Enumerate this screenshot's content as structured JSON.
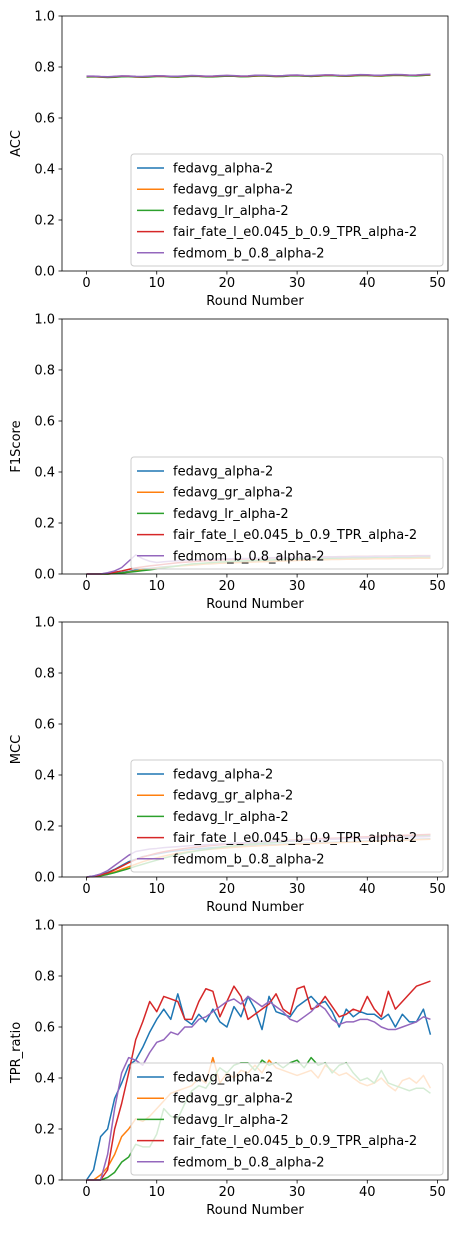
{
  "chart_data": [
    {
      "type": "line",
      "ylabel": "ACC",
      "xlabel": "Round Number",
      "xlim": [
        -3.5,
        51.5
      ],
      "ylim": [
        0,
        1.0
      ],
      "xticks": [
        "0",
        "10",
        "20",
        "30",
        "40",
        "50"
      ],
      "yticks": [
        "0.0",
        "0.2",
        "0.4",
        "0.6",
        "0.8",
        "1.0"
      ],
      "legend_position": "lower-right",
      "series": [
        {
          "name": "fedavg_alpha-2",
          "color": "#1f77b4",
          "start": 0.762,
          "end": 0.768
        },
        {
          "name": "fedavg_gr_alpha-2",
          "color": "#ff7f0e",
          "start": 0.761,
          "end": 0.767
        },
        {
          "name": "fedavg_lr_alpha-2",
          "color": "#2ca02c",
          "start": 0.76,
          "end": 0.767
        },
        {
          "name": "fair_fate_l_e0.045_b_0.9_TPR_alpha-2",
          "color": "#d62728",
          "start": 0.762,
          "end": 0.769
        },
        {
          "name": "fedmom_b_0.8_alpha-2",
          "color": "#9467bd",
          "start": 0.763,
          "end": 0.77
        }
      ]
    },
    {
      "type": "line",
      "ylabel": "F1Score",
      "xlabel": "Round Number",
      "xlim": [
        -3.5,
        51.5
      ],
      "ylim": [
        0,
        1.0
      ],
      "xticks": [
        "0",
        "10",
        "20",
        "30",
        "40",
        "50"
      ],
      "yticks": [
        "0.0",
        "0.2",
        "0.4",
        "0.6",
        "0.8",
        "1.0"
      ],
      "legend_position": "lower-right",
      "series": [
        {
          "name": "fedavg_alpha-2",
          "color": "#1f77b4",
          "values": [
            0,
            0,
            0,
            0,
            0.003,
            0.006,
            0.01,
            0.015,
            0.02,
            0.022,
            0.025,
            0.028,
            0.03,
            0.032,
            0.035,
            0.036,
            0.038,
            0.04,
            0.041,
            0.043,
            0.044,
            0.045,
            0.046,
            0.047,
            0.048,
            0.049,
            0.05,
            0.051,
            0.052,
            0.053,
            0.054,
            0.055,
            0.056,
            0.057,
            0.057,
            0.058,
            0.058,
            0.059,
            0.059,
            0.06,
            0.06,
            0.06,
            0.061,
            0.061,
            0.062,
            0.062,
            0.062,
            0.063,
            0.063,
            0.063
          ]
        },
        {
          "name": "fedavg_gr_alpha-2",
          "color": "#ff7f0e",
          "values": [
            0,
            0,
            0,
            0,
            0.002,
            0.004,
            0.008,
            0.012,
            0.016,
            0.02,
            0.023,
            0.026,
            0.029,
            0.031,
            0.033,
            0.035,
            0.037,
            0.039,
            0.04,
            0.042,
            0.043,
            0.044,
            0.045,
            0.046,
            0.047,
            0.048,
            0.049,
            0.05,
            0.051,
            0.052,
            0.053,
            0.054,
            0.055,
            0.056,
            0.056,
            0.057,
            0.057,
            0.058,
            0.058,
            0.059,
            0.059,
            0.06,
            0.06,
            0.06,
            0.061,
            0.061,
            0.061,
            0.062,
            0.062,
            0.062
          ]
        },
        {
          "name": "fedavg_lr_alpha-2",
          "color": "#2ca02c",
          "values": [
            0,
            0,
            0,
            0,
            0.002,
            0.004,
            0.007,
            0.01,
            0.013,
            0.016,
            0.02,
            0.024,
            0.028,
            0.032,
            0.036,
            0.039,
            0.041,
            0.043,
            0.045,
            0.047,
            0.048,
            0.05,
            0.051,
            0.052,
            0.053,
            0.054,
            0.055,
            0.056,
            0.057,
            0.058,
            0.059,
            0.06,
            0.06,
            0.061,
            0.062,
            0.062,
            0.063,
            0.063,
            0.064,
            0.064,
            0.065,
            0.065,
            0.066,
            0.066,
            0.066,
            0.067,
            0.067,
            0.067,
            0.068,
            0.068
          ]
        },
        {
          "name": "fair_fate_l_e0.045_b_0.9_TPR_alpha-2",
          "color": "#d62728",
          "values": [
            0,
            0,
            0,
            0.003,
            0.007,
            0.012,
            0.018,
            0.024,
            0.028,
            0.032,
            0.035,
            0.038,
            0.041,
            0.044,
            0.046,
            0.048,
            0.05,
            0.052,
            0.053,
            0.055,
            0.056,
            0.057,
            0.058,
            0.059,
            0.06,
            0.061,
            0.062,
            0.063,
            0.063,
            0.064,
            0.065,
            0.065,
            0.066,
            0.066,
            0.067,
            0.067,
            0.068,
            0.068,
            0.069,
            0.069,
            0.069,
            0.07,
            0.07,
            0.07,
            0.071,
            0.071,
            0.071,
            0.072,
            0.072,
            0.072
          ]
        },
        {
          "name": "fedmom_b_0.8_alpha-2",
          "color": "#9467bd",
          "values": [
            0,
            0,
            0,
            0.005,
            0.012,
            0.025,
            0.05,
            0.075,
            0.06,
            0.05,
            0.045,
            0.048,
            0.05,
            0.052,
            0.054,
            0.055,
            0.056,
            0.057,
            0.058,
            0.059,
            0.06,
            0.06,
            0.061,
            0.061,
            0.062,
            0.062,
            0.063,
            0.063,
            0.064,
            0.064,
            0.065,
            0.065,
            0.066,
            0.066,
            0.066,
            0.067,
            0.067,
            0.067,
            0.068,
            0.068,
            0.068,
            0.069,
            0.069,
            0.069,
            0.07,
            0.07,
            0.07,
            0.07,
            0.071,
            0.071
          ]
        }
      ]
    },
    {
      "type": "line",
      "ylabel": "MCC",
      "xlabel": "Round Number",
      "xlim": [
        -3.5,
        51.5
      ],
      "ylim": [
        0,
        1.0
      ],
      "xticks": [
        "0",
        "10",
        "20",
        "30",
        "40",
        "50"
      ],
      "yticks": [
        "0.0",
        "0.2",
        "0.4",
        "0.6",
        "0.8",
        "1.0"
      ],
      "legend_position": "lower-right",
      "series": [
        {
          "name": "fedavg_alpha-2",
          "color": "#1f77b4",
          "values": [
            0,
            0.004,
            0.01,
            0.018,
            0.03,
            0.045,
            0.06,
            0.07,
            0.08,
            0.085,
            0.09,
            0.095,
            0.1,
            0.103,
            0.106,
            0.109,
            0.111,
            0.113,
            0.115,
            0.117,
            0.119,
            0.12,
            0.122,
            0.123,
            0.124,
            0.126,
            0.127,
            0.128,
            0.129,
            0.13,
            0.131,
            0.132,
            0.133,
            0.134,
            0.135,
            0.136,
            0.137,
            0.138,
            0.139,
            0.14,
            0.141,
            0.142,
            0.143,
            0.144,
            0.145,
            0.146,
            0.147,
            0.148,
            0.149,
            0.15
          ]
        },
        {
          "name": "fedavg_gr_alpha-2",
          "color": "#ff7f0e",
          "values": [
            0,
            0.002,
            0.006,
            0.012,
            0.02,
            0.03,
            0.04,
            0.05,
            0.06,
            0.068,
            0.075,
            0.082,
            0.088,
            0.093,
            0.097,
            0.101,
            0.104,
            0.107,
            0.11,
            0.112,
            0.114,
            0.116,
            0.118,
            0.12,
            0.121,
            0.123,
            0.124,
            0.125,
            0.127,
            0.128,
            0.129,
            0.13,
            0.131,
            0.132,
            0.133,
            0.134,
            0.135,
            0.136,
            0.137,
            0.138,
            0.139,
            0.14,
            0.141,
            0.142,
            0.143,
            0.144,
            0.145,
            0.146,
            0.147,
            0.148
          ]
        },
        {
          "name": "fedavg_lr_alpha-2",
          "color": "#2ca02c",
          "values": [
            0,
            0.002,
            0.005,
            0.01,
            0.017,
            0.025,
            0.033,
            0.042,
            0.05,
            0.058,
            0.066,
            0.074,
            0.081,
            0.088,
            0.094,
            0.099,
            0.104,
            0.108,
            0.112,
            0.116,
            0.119,
            0.122,
            0.125,
            0.128,
            0.13,
            0.132,
            0.134,
            0.136,
            0.138,
            0.14,
            0.142,
            0.143,
            0.145,
            0.146,
            0.148,
            0.149,
            0.15,
            0.151,
            0.153,
            0.154,
            0.155,
            0.156,
            0.157,
            0.158,
            0.159,
            0.16,
            0.161,
            0.162,
            0.163,
            0.164
          ]
        },
        {
          "name": "fair_fate_l_e0.045_b_0.9_TPR_alpha-2",
          "color": "#d62728",
          "values": [
            0,
            0.003,
            0.008,
            0.016,
            0.028,
            0.042,
            0.056,
            0.068,
            0.078,
            0.086,
            0.093,
            0.099,
            0.104,
            0.108,
            0.112,
            0.115,
            0.118,
            0.121,
            0.124,
            0.126,
            0.128,
            0.13,
            0.132,
            0.134,
            0.136,
            0.138,
            0.14,
            0.141,
            0.143,
            0.144,
            0.146,
            0.147,
            0.148,
            0.15,
            0.151,
            0.152,
            0.153,
            0.155,
            0.156,
            0.157,
            0.158,
            0.159,
            0.16,
            0.161,
            0.162,
            0.163,
            0.164,
            0.165,
            0.166,
            0.167
          ]
        },
        {
          "name": "fedmom_b_0.8_alpha-2",
          "color": "#9467bd",
          "values": [
            0,
            0.004,
            0.012,
            0.025,
            0.045,
            0.065,
            0.085,
            0.1,
            0.105,
            0.11,
            0.112,
            0.115,
            0.117,
            0.119,
            0.121,
            0.123,
            0.125,
            0.127,
            0.128,
            0.13,
            0.131,
            0.133,
            0.134,
            0.135,
            0.137,
            0.138,
            0.139,
            0.14,
            0.141,
            0.142,
            0.143,
            0.144,
            0.145,
            0.146,
            0.147,
            0.148,
            0.149,
            0.15,
            0.151,
            0.152,
            0.152,
            0.153,
            0.154,
            0.155,
            0.156,
            0.156,
            0.157,
            0.158,
            0.158,
            0.159
          ]
        }
      ]
    },
    {
      "type": "line",
      "ylabel": "TPR_ratio",
      "xlabel": "Round Number",
      "xlim": [
        -3.5,
        51.5
      ],
      "ylim": [
        0,
        1.0
      ],
      "xticks": [
        "0",
        "10",
        "20",
        "30",
        "40",
        "50"
      ],
      "yticks": [
        "0.0",
        "0.2",
        "0.4",
        "0.6",
        "0.8",
        "1.0"
      ],
      "legend_position": "lower-right",
      "series": [
        {
          "name": "fedavg_alpha-2",
          "color": "#1f77b4",
          "values": [
            0,
            0.04,
            0.17,
            0.2,
            0.32,
            0.38,
            0.45,
            0.47,
            0.52,
            0.58,
            0.63,
            0.67,
            0.63,
            0.73,
            0.63,
            0.61,
            0.65,
            0.62,
            0.67,
            0.62,
            0.6,
            0.68,
            0.64,
            0.72,
            0.67,
            0.59,
            0.72,
            0.66,
            0.65,
            0.64,
            0.68,
            0.7,
            0.72,
            0.69,
            0.7,
            0.66,
            0.6,
            0.67,
            0.64,
            0.66,
            0.65,
            0.65,
            0.63,
            0.65,
            0.6,
            0.65,
            0.62,
            0.62,
            0.67,
            0.57
          ]
        },
        {
          "name": "fedavg_gr_alpha-2",
          "color": "#ff7f0e",
          "values": [
            0,
            0,
            0.02,
            0.05,
            0.1,
            0.17,
            0.2,
            0.24,
            0.23,
            0.25,
            0.28,
            0.31,
            0.34,
            0.35,
            0.36,
            0.37,
            0.4,
            0.38,
            0.48,
            0.38,
            0.42,
            0.4,
            0.43,
            0.42,
            0.45,
            0.42,
            0.47,
            0.44,
            0.43,
            0.42,
            0.41,
            0.42,
            0.43,
            0.4,
            0.45,
            0.43,
            0.41,
            0.42,
            0.4,
            0.38,
            0.37,
            0.38,
            0.4,
            0.37,
            0.35,
            0.39,
            0.4,
            0.38,
            0.41,
            0.36
          ]
        },
        {
          "name": "fedavg_lr_alpha-2",
          "color": "#2ca02c",
          "values": [
            0,
            0,
            0,
            0.01,
            0.03,
            0.07,
            0.09,
            0.14,
            0.13,
            0.13,
            0.18,
            0.28,
            0.25,
            0.24,
            0.3,
            0.35,
            0.37,
            0.36,
            0.4,
            0.44,
            0.42,
            0.45,
            0.46,
            0.46,
            0.43,
            0.47,
            0.45,
            0.46,
            0.44,
            0.46,
            0.47,
            0.44,
            0.48,
            0.45,
            0.46,
            0.42,
            0.45,
            0.46,
            0.42,
            0.39,
            0.4,
            0.38,
            0.43,
            0.38,
            0.37,
            0.36,
            0.35,
            0.36,
            0.36,
            0.34
          ]
        },
        {
          "name": "fair_fate_l_e0.045_b_0.9_TPR_alpha-2",
          "color": "#d62728",
          "values": [
            0,
            0,
            0,
            0.04,
            0.2,
            0.3,
            0.42,
            0.55,
            0.62,
            0.7,
            0.66,
            0.72,
            0.71,
            0.7,
            0.63,
            0.63,
            0.7,
            0.75,
            0.74,
            0.64,
            0.7,
            0.76,
            0.72,
            0.63,
            0.65,
            0.67,
            0.69,
            0.73,
            0.67,
            0.65,
            0.75,
            0.76,
            0.67,
            0.68,
            0.72,
            0.68,
            0.64,
            0.65,
            0.67,
            0.66,
            0.72,
            0.67,
            0.64,
            0.74,
            0.67,
            0.7,
            0.73,
            0.76,
            0.77,
            0.78
          ]
        },
        {
          "name": "fedmom_b_0.8_alpha-2",
          "color": "#9467bd",
          "values": [
            0,
            0,
            0,
            0.1,
            0.28,
            0.42,
            0.48,
            0.47,
            0.45,
            0.5,
            0.54,
            0.55,
            0.58,
            0.57,
            0.6,
            0.6,
            0.63,
            0.64,
            0.66,
            0.68,
            0.7,
            0.71,
            0.69,
            0.72,
            0.7,
            0.68,
            0.7,
            0.68,
            0.66,
            0.63,
            0.62,
            0.64,
            0.66,
            0.69,
            0.67,
            0.63,
            0.61,
            0.62,
            0.62,
            0.63,
            0.63,
            0.62,
            0.6,
            0.59,
            0.59,
            0.6,
            0.61,
            0.62,
            0.64,
            0.63
          ]
        }
      ]
    }
  ]
}
